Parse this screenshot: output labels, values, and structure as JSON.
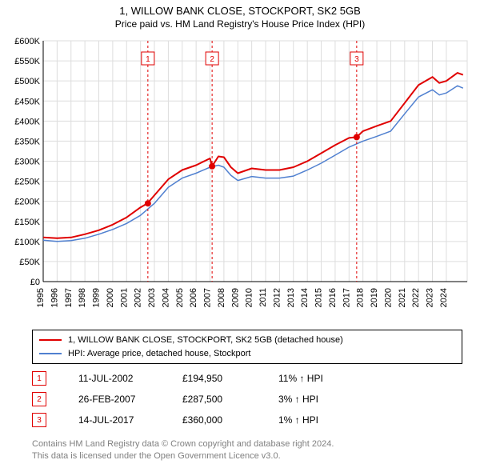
{
  "title": "1, WILLOW BANK CLOSE, STOCKPORT, SK2 5GB",
  "subtitle": "Price paid vs. HM Land Registry's House Price Index (HPI)",
  "chart": {
    "type": "line",
    "background_color": "#ffffff",
    "grid_color": "#dddddd",
    "border_color": "#000000",
    "x_years": [
      1995,
      1996,
      1997,
      1998,
      1999,
      2000,
      2001,
      2002,
      2003,
      2004,
      2005,
      2006,
      2007,
      2008,
      2009,
      2010,
      2011,
      2012,
      2013,
      2014,
      2015,
      2016,
      2017,
      2018,
      2019,
      2020,
      2021,
      2022,
      2023,
      2024
    ],
    "x_min": 1995,
    "x_max": 2025.5,
    "ylim": [
      0,
      600000
    ],
    "ytick_step": 50000,
    "y_tick_labels": [
      "£0",
      "£50K",
      "£100K",
      "£150K",
      "£200K",
      "£250K",
      "£300K",
      "£350K",
      "£400K",
      "£450K",
      "£500K",
      "£550K",
      "£600K"
    ],
    "x_label_fontsize": 11,
    "y_label_fontsize": 11,
    "series": [
      {
        "name": "property",
        "label": "1, WILLOW BANK CLOSE, STOCKPORT, SK2 5GB (detached house)",
        "color": "#e00000",
        "width": 2,
        "points": [
          [
            1995.0,
            110000
          ],
          [
            1996.0,
            108000
          ],
          [
            1997.0,
            110000
          ],
          [
            1998.0,
            118000
          ],
          [
            1999.0,
            128000
          ],
          [
            2000.0,
            142000
          ],
          [
            2001.0,
            160000
          ],
          [
            2002.0,
            185000
          ],
          [
            2002.5,
            194950
          ],
          [
            2003.0,
            215000
          ],
          [
            2004.0,
            255000
          ],
          [
            2005.0,
            278000
          ],
          [
            2006.0,
            290000
          ],
          [
            2007.0,
            307000
          ],
          [
            2007.15,
            287500
          ],
          [
            2007.6,
            312000
          ],
          [
            2008.0,
            310000
          ],
          [
            2008.5,
            285000
          ],
          [
            2009.0,
            270000
          ],
          [
            2010.0,
            282000
          ],
          [
            2011.0,
            278000
          ],
          [
            2012.0,
            278000
          ],
          [
            2013.0,
            285000
          ],
          [
            2014.0,
            300000
          ],
          [
            2015.0,
            320000
          ],
          [
            2016.0,
            340000
          ],
          [
            2017.0,
            358000
          ],
          [
            2017.55,
            360000
          ],
          [
            2018.0,
            375000
          ],
          [
            2019.0,
            388000
          ],
          [
            2020.0,
            400000
          ],
          [
            2021.0,
            445000
          ],
          [
            2022.0,
            490000
          ],
          [
            2023.0,
            510000
          ],
          [
            2023.5,
            495000
          ],
          [
            2024.0,
            500000
          ],
          [
            2024.8,
            520000
          ],
          [
            2025.2,
            515000
          ]
        ]
      },
      {
        "name": "hpi",
        "label": "HPI: Average price, detached house, Stockport",
        "color": "#5080d0",
        "width": 1.5,
        "points": [
          [
            1995.0,
            103000
          ],
          [
            1996.0,
            100000
          ],
          [
            1997.0,
            102000
          ],
          [
            1998.0,
            108000
          ],
          [
            1999.0,
            118000
          ],
          [
            2000.0,
            130000
          ],
          [
            2001.0,
            145000
          ],
          [
            2002.0,
            165000
          ],
          [
            2003.0,
            195000
          ],
          [
            2004.0,
            235000
          ],
          [
            2005.0,
            258000
          ],
          [
            2006.0,
            270000
          ],
          [
            2007.0,
            285000
          ],
          [
            2007.6,
            290000
          ],
          [
            2008.0,
            285000
          ],
          [
            2008.5,
            265000
          ],
          [
            2009.0,
            252000
          ],
          [
            2010.0,
            262000
          ],
          [
            2011.0,
            258000
          ],
          [
            2012.0,
            258000
          ],
          [
            2013.0,
            263000
          ],
          [
            2014.0,
            278000
          ],
          [
            2015.0,
            295000
          ],
          [
            2016.0,
            315000
          ],
          [
            2017.0,
            335000
          ],
          [
            2018.0,
            350000
          ],
          [
            2019.0,
            362000
          ],
          [
            2020.0,
            375000
          ],
          [
            2021.0,
            418000
          ],
          [
            2022.0,
            460000
          ],
          [
            2023.0,
            478000
          ],
          [
            2023.5,
            465000
          ],
          [
            2024.0,
            470000
          ],
          [
            2024.8,
            488000
          ],
          [
            2025.2,
            482000
          ]
        ]
      }
    ],
    "sale_markers": [
      {
        "n": "1",
        "x": 2002.53,
        "price": 194950,
        "color": "#e00000"
      },
      {
        "n": "2",
        "x": 2007.15,
        "price": 287500,
        "color": "#e00000"
      },
      {
        "n": "3",
        "x": 2017.55,
        "price": 360000,
        "color": "#e00000"
      }
    ],
    "sale_marker_style": {
      "vline_color": "#e00000",
      "vline_dash": "3,3",
      "vline_width": 1,
      "box_border": "#e00000",
      "box_fill": "#ffffff",
      "dot_fill": "#e00000",
      "dot_radius": 4,
      "box_size": 16
    }
  },
  "legend": {
    "items": [
      {
        "color": "#e00000",
        "label": "1, WILLOW BANK CLOSE, STOCKPORT, SK2 5GB (detached house)"
      },
      {
        "color": "#5080d0",
        "label": "HPI: Average price, detached house, Stockport"
      }
    ]
  },
  "sales": [
    {
      "n": "1",
      "date": "11-JUL-2002",
      "price": "£194,950",
      "delta": "11% ↑ HPI",
      "color": "#e00000"
    },
    {
      "n": "2",
      "date": "26-FEB-2007",
      "price": "£287,500",
      "delta": "3% ↑ HPI",
      "color": "#e00000"
    },
    {
      "n": "3",
      "date": "14-JUL-2017",
      "price": "£360,000",
      "delta": "1% ↑ HPI",
      "color": "#e00000"
    }
  ],
  "attribution": {
    "line1": "Contains HM Land Registry data © Crown copyright and database right 2024.",
    "line2": "This data is licensed under the Open Government Licence v3.0."
  }
}
